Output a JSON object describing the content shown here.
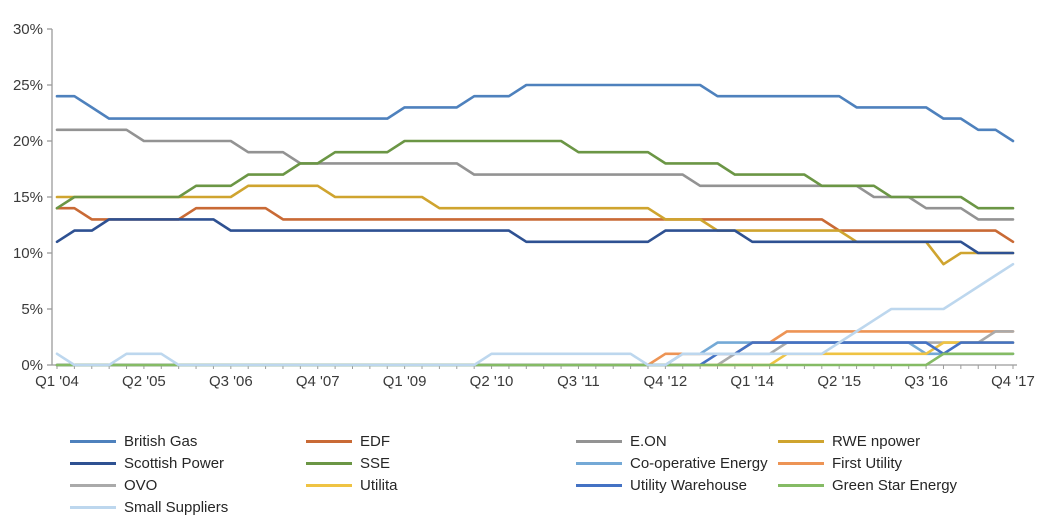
{
  "axis": {
    "line_color": "#9b9b9b",
    "text_color": "#3a3a3a"
  },
  "chart_data": {
    "type": "line",
    "grid": false,
    "legend_position": "bottom",
    "ylabel_ticks": [
      "0%",
      "5%",
      "10%",
      "15%",
      "20%",
      "25%",
      "30%"
    ],
    "ylim": [
      0,
      30
    ],
    "x_unit": "quarter",
    "x_points": 56,
    "x_tick_every": 5,
    "x_tick_labels": [
      "Q1 '04",
      "Q2 '05",
      "Q3 '06",
      "Q4 '07",
      "Q1 '09",
      "Q2 '10",
      "Q3 '11",
      "Q4 '12",
      "Q1 '14",
      "Q2 '15",
      "Q3 '16",
      "Q4 '17"
    ],
    "series": [
      {
        "name": "British Gas",
        "color": "#4E81BD",
        "values": [
          24,
          24,
          23,
          22,
          22,
          22,
          22,
          22,
          22,
          22,
          22,
          22,
          22,
          22,
          22,
          22,
          22,
          22,
          22,
          22,
          23,
          23,
          23,
          23,
          24,
          24,
          24,
          25,
          25,
          25,
          25,
          25,
          25,
          25,
          25,
          25,
          25,
          25,
          24,
          24,
          24,
          24,
          24,
          24,
          24,
          24,
          23,
          23,
          23,
          23,
          23,
          22,
          22,
          21,
          21,
          20
        ]
      },
      {
        "name": "EDF",
        "color": "#C96A35",
        "values": [
          14,
          14,
          13,
          13,
          13,
          13,
          13,
          13,
          14,
          14,
          14,
          14,
          14,
          13,
          13,
          13,
          13,
          13,
          13,
          13,
          13,
          13,
          13,
          13,
          13,
          13,
          13,
          13,
          13,
          13,
          13,
          13,
          13,
          13,
          13,
          13,
          13,
          13,
          13,
          13,
          13,
          13,
          13,
          13,
          13,
          12,
          12,
          12,
          12,
          12,
          12,
          12,
          12,
          12,
          12,
          11
        ]
      },
      {
        "name": "E.ON",
        "color": "#939393",
        "values": [
          21,
          21,
          21,
          21,
          21,
          20,
          20,
          20,
          20,
          20,
          20,
          19,
          19,
          19,
          18,
          18,
          18,
          18,
          18,
          18,
          18,
          18,
          18,
          18,
          17,
          17,
          17,
          17,
          17,
          17,
          17,
          17,
          17,
          17,
          17,
          17,
          17,
          16,
          16,
          16,
          16,
          16,
          16,
          16,
          16,
          16,
          16,
          15,
          15,
          15,
          14,
          14,
          14,
          13,
          13,
          13
        ]
      },
      {
        "name": "RWE npower",
        "color": "#CFA42F",
        "values": [
          15,
          15,
          15,
          15,
          15,
          15,
          15,
          15,
          15,
          15,
          15,
          16,
          16,
          16,
          16,
          16,
          15,
          15,
          15,
          15,
          15,
          15,
          14,
          14,
          14,
          14,
          14,
          14,
          14,
          14,
          14,
          14,
          14,
          14,
          14,
          13,
          13,
          13,
          12,
          12,
          12,
          12,
          12,
          12,
          12,
          12,
          11,
          11,
          11,
          11,
          11,
          9,
          10,
          10,
          10,
          10
        ]
      },
      {
        "name": "Scottish Power",
        "color": "#2E5192",
        "values": [
          11,
          12,
          12,
          13,
          13,
          13,
          13,
          13,
          13,
          13,
          12,
          12,
          12,
          12,
          12,
          12,
          12,
          12,
          12,
          12,
          12,
          12,
          12,
          12,
          12,
          12,
          12,
          11,
          11,
          11,
          11,
          11,
          11,
          11,
          11,
          12,
          12,
          12,
          12,
          12,
          11,
          11,
          11,
          11,
          11,
          11,
          11,
          11,
          11,
          11,
          11,
          11,
          11,
          10,
          10,
          10
        ]
      },
      {
        "name": "SSE",
        "color": "#6B9645",
        "values": [
          14,
          15,
          15,
          15,
          15,
          15,
          15,
          15,
          16,
          16,
          16,
          17,
          17,
          17,
          18,
          18,
          19,
          19,
          19,
          19,
          20,
          20,
          20,
          20,
          20,
          20,
          20,
          20,
          20,
          20,
          19,
          19,
          19,
          19,
          19,
          18,
          18,
          18,
          18,
          17,
          17,
          17,
          17,
          17,
          16,
          16,
          16,
          16,
          15,
          15,
          15,
          15,
          15,
          14,
          14,
          14
        ]
      },
      {
        "name": "Co-operative Energy",
        "color": "#74A9D6",
        "values": [
          0,
          0,
          0,
          0,
          0,
          0,
          0,
          0,
          0,
          0,
          0,
          0,
          0,
          0,
          0,
          0,
          0,
          0,
          0,
          0,
          0,
          0,
          0,
          0,
          0,
          0,
          0,
          0,
          0,
          0,
          0,
          0,
          0,
          0,
          0,
          0,
          1,
          1,
          2,
          2,
          2,
          2,
          2,
          2,
          2,
          2,
          2,
          2,
          2,
          2,
          1,
          1,
          1,
          1,
          1,
          1
        ]
      },
      {
        "name": "First Utility",
        "color": "#ED9455",
        "values": [
          0,
          0,
          0,
          0,
          0,
          0,
          0,
          0,
          0,
          0,
          0,
          0,
          0,
          0,
          0,
          0,
          0,
          0,
          0,
          0,
          0,
          0,
          0,
          0,
          0,
          0,
          0,
          0,
          0,
          0,
          0,
          0,
          0,
          0,
          0,
          1,
          1,
          1,
          1,
          1,
          2,
          2,
          3,
          3,
          3,
          3,
          3,
          3,
          3,
          3,
          3,
          3,
          3,
          3,
          3,
          3
        ]
      },
      {
        "name": "OVO",
        "color": "#AAAAAA",
        "values": [
          0,
          0,
          0,
          0,
          0,
          0,
          0,
          0,
          0,
          0,
          0,
          0,
          0,
          0,
          0,
          0,
          0,
          0,
          0,
          0,
          0,
          0,
          0,
          0,
          0,
          0,
          0,
          0,
          0,
          0,
          0,
          0,
          0,
          0,
          0,
          0,
          0,
          0,
          0,
          1,
          1,
          1,
          2,
          2,
          2,
          2,
          2,
          2,
          2,
          2,
          2,
          2,
          2,
          2,
          3,
          3
        ]
      },
      {
        "name": "Utilita",
        "color": "#EFC343",
        "values": [
          0,
          0,
          0,
          0,
          0,
          0,
          0,
          0,
          0,
          0,
          0,
          0,
          0,
          0,
          0,
          0,
          0,
          0,
          0,
          0,
          0,
          0,
          0,
          0,
          0,
          0,
          0,
          0,
          0,
          0,
          0,
          0,
          0,
          0,
          0,
          0,
          0,
          0,
          0,
          0,
          0,
          0,
          1,
          1,
          1,
          1,
          1,
          1,
          1,
          1,
          1,
          2,
          2,
          2,
          2,
          2
        ]
      },
      {
        "name": "Utility Warehouse",
        "color": "#4472C4",
        "values": [
          0,
          0,
          0,
          0,
          0,
          0,
          0,
          0,
          0,
          0,
          0,
          0,
          0,
          0,
          0,
          0,
          0,
          0,
          0,
          0,
          0,
          0,
          0,
          0,
          0,
          0,
          0,
          0,
          0,
          0,
          0,
          0,
          0,
          0,
          0,
          0,
          0,
          0,
          1,
          1,
          2,
          2,
          2,
          2,
          2,
          2,
          2,
          2,
          2,
          2,
          2,
          1,
          2,
          2,
          2,
          2
        ]
      },
      {
        "name": "Green Star Energy",
        "color": "#85BB65",
        "values": [
          0,
          0,
          0,
          0,
          0,
          0,
          0,
          0,
          0,
          0,
          0,
          0,
          0,
          0,
          0,
          0,
          0,
          0,
          0,
          0,
          0,
          0,
          0,
          0,
          0,
          0,
          0,
          0,
          0,
          0,
          0,
          0,
          0,
          0,
          0,
          0,
          0,
          0,
          0,
          0,
          0,
          0,
          0,
          0,
          0,
          0,
          0,
          0,
          0,
          0,
          0,
          1,
          1,
          1,
          1,
          1
        ]
      },
      {
        "name": "Small Suppliers",
        "color": "#BDD7EE",
        "values": [
          1,
          0,
          0,
          0,
          1,
          1,
          1,
          0,
          0,
          0,
          0,
          0,
          0,
          0,
          0,
          0,
          0,
          0,
          0,
          0,
          0,
          0,
          0,
          0,
          0,
          1,
          1,
          1,
          1,
          1,
          1,
          1,
          1,
          1,
          0,
          0,
          1,
          1,
          1,
          1,
          1,
          1,
          1,
          1,
          1,
          2,
          3,
          4,
          5,
          5,
          5,
          5,
          6,
          7,
          8,
          9
        ]
      }
    ]
  }
}
